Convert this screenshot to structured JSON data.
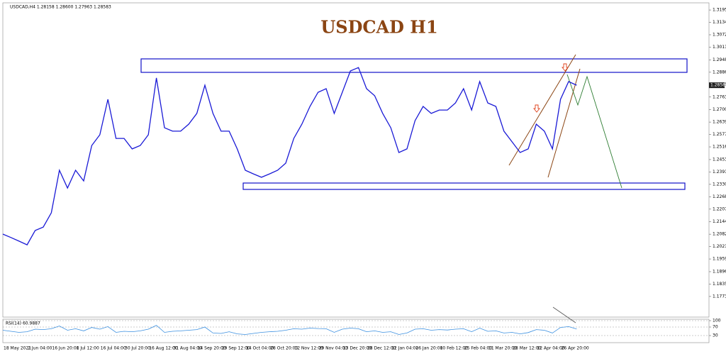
{
  "chart_data": [
    {
      "type": "line",
      "title": "USDCAD H1",
      "subtitle": "USDCAD,H4 1.28158 1.28600 1.27963 1.28583",
      "price_label": "1.28583",
      "categories": [
        "18 May 2021",
        null,
        null,
        "2 Jun 04:00",
        null,
        null,
        "16 Jun 20:00",
        null,
        null,
        "1 Jul 12:00",
        null,
        null,
        "16 Jul 04:00",
        null,
        null,
        "30 Jul 20:00",
        null,
        null,
        "16 Aug 12:00",
        null,
        null,
        "31 Aug 04:00",
        null,
        null,
        "14 Sep 20:00",
        null,
        null,
        "29 Sep 12:00",
        null,
        null,
        "14 Oct 04:00",
        null,
        null,
        "28 Oct 20:00",
        null,
        null,
        "12 Nov 12:00",
        null,
        null,
        "29 Nov 04:00",
        null,
        null,
        "13 Dec 20:00",
        null,
        null,
        "28 Dec 12:00",
        null,
        null,
        "12 Jan 04:00",
        null,
        null,
        "26 Jan 20:00",
        null,
        null,
        "10 Feb 12:00",
        null,
        null,
        "25 Feb 04:00",
        null,
        null,
        "11 Mar 20:00",
        null,
        null,
        "28 Mar 12:00",
        null,
        null,
        "12 Apr 04:00",
        null,
        null,
        "26 Apr 20:00",
        null,
        null
      ],
      "series": [
        {
          "color": "#1a1ad6",
          "values": [
            1.2083,
            1.2066,
            1.2048,
            1.203,
            1.2101,
            1.2118,
            1.2189,
            1.24,
            1.2312,
            1.24,
            1.2347,
            1.2523,
            1.2576,
            1.2752,
            1.2558,
            1.2558,
            1.2506,
            1.2523,
            1.2576,
            1.2858,
            1.2611,
            1.2594,
            1.2594,
            1.2629,
            1.2682,
            1.2822,
            1.2682,
            1.2594,
            1.2594,
            1.2506,
            1.24,
            1.2382,
            1.2365,
            1.2382,
            1.24,
            1.2435,
            1.2558,
            1.2629,
            1.2717,
            1.2787,
            1.2805,
            1.2682,
            1.2787,
            1.2893,
            1.291,
            1.2805,
            1.277,
            1.2682,
            1.2611,
            1.2488,
            1.2506,
            1.2646,
            1.2717,
            1.2682,
            1.2699,
            1.2699,
            1.2734,
            1.2805,
            1.2699,
            1.284,
            1.2734,
            1.2717,
            1.2594,
            1.2541,
            1.2488,
            1.2506,
            1.2629,
            1.2594,
            1.2506,
            1.2752,
            1.284,
            1.2822
          ]
        }
      ],
      "ylim": [
        1.1671,
        1.3231
      ],
      "yticks": [
        1.31955,
        {
          "value": 1.3134,
          "label": "1.31340"
        },
        1.30725,
        {
          "value": 1.3011,
          "label": "1.30110"
        },
        {
          "value": 1.2948,
          "label": "1.29480"
        },
        1.28865,
        {
          "value": 1.2825,
          "label": "1.28250"
        },
        1.27635,
        1.27005,
        {
          "value": 1.2639,
          "label": "1.26390"
        },
        1.25775,
        {
          "value": 1.2516,
          "label": "1.25160"
        },
        {
          "value": 1.2453,
          "label": "1.24530"
        },
        1.23915,
        {
          "value": 1.233,
          "label": "1.23300"
        },
        1.22685,
        {
          "value": 1.2207,
          "label": "1.22070"
        },
        {
          "value": 1.2144,
          "label": "1.21440"
        },
        1.20825,
        {
          "value": 1.2021,
          "label": "1.20210"
        },
        1.19595,
        1.18965,
        {
          "value": 1.1835,
          "label": "1.18350"
        },
        1.17735
      ],
      "grid": false
    },
    {
      "type": "line",
      "title": "RSI(14) 60.9887",
      "series": [
        {
          "color": "#3a8fe0",
          "values": [
            55,
            50,
            45,
            48,
            60,
            58,
            62,
            75,
            55,
            62,
            52,
            68,
            60,
            72,
            45,
            50,
            48,
            52,
            60,
            78,
            45,
            50,
            52,
            55,
            58,
            70,
            42,
            40,
            48,
            38,
            35,
            40,
            45,
            48,
            50,
            55,
            62,
            60,
            65,
            63,
            62,
            45,
            60,
            65,
            62,
            48,
            52,
            45,
            48,
            35,
            42,
            60,
            62,
            55,
            58,
            56,
            60,
            62,
            48,
            65,
            50,
            52,
            42,
            45,
            38,
            44,
            58,
            55,
            42,
            68,
            72,
            61
          ]
        }
      ],
      "ylim": [
        0,
        100
      ],
      "yticks": [
        30,
        70,
        100
      ],
      "grid": true
    }
  ]
}
